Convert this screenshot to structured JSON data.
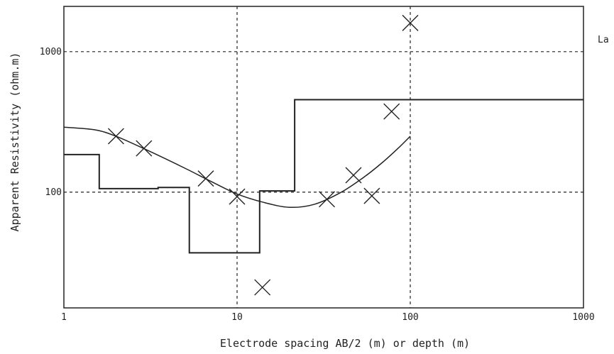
{
  "chart_data": {
    "type": "scatter",
    "xscale": "log",
    "yscale": "log",
    "xlim": [
      1,
      1000
    ],
    "ylim": [
      15,
      2100
    ],
    "grid": "dashed, major decades only",
    "xlabel": "Electrode spacing AB/2 (m) or depth (m)",
    "ylabel": "Apparent Resistivity (ohm.m)",
    "x_ticks": [
      {
        "value": 1,
        "label": "1"
      },
      {
        "value": 10,
        "label": "10"
      },
      {
        "value": 100,
        "label": "100"
      },
      {
        "value": 1000,
        "label": "1000"
      }
    ],
    "y_ticks": [
      {
        "value": 100,
        "label": "100"
      },
      {
        "value": 1000,
        "label": "1000"
      }
    ],
    "legend_fragment": "La",
    "series": [
      {
        "type": "scatter",
        "marker": "x",
        "points": [
          {
            "x": 2,
            "y": 250
          },
          {
            "x": 2.9,
            "y": 205
          },
          {
            "x": 6.6,
            "y": 125
          },
          {
            "x": 10,
            "y": 93
          },
          {
            "x": 14,
            "y": 21
          },
          {
            "x": 33,
            "y": 89
          },
          {
            "x": 47,
            "y": 132
          },
          {
            "x": 60,
            "y": 94
          },
          {
            "x": 78,
            "y": 375
          },
          {
            "x": 100,
            "y": 1600
          }
        ]
      },
      {
        "type": "line",
        "style": "smooth",
        "points": [
          {
            "x": 1,
            "y": 290
          },
          {
            "x": 1.5,
            "y": 278
          },
          {
            "x": 2,
            "y": 250
          },
          {
            "x": 3,
            "y": 200
          },
          {
            "x": 5,
            "y": 148
          },
          {
            "x": 7,
            "y": 120
          },
          {
            "x": 10,
            "y": 97
          },
          {
            "x": 14,
            "y": 85
          },
          {
            "x": 20,
            "y": 78
          },
          {
            "x": 28,
            "y": 82
          },
          {
            "x": 40,
            "y": 100
          },
          {
            "x": 55,
            "y": 130
          },
          {
            "x": 70,
            "y": 165
          },
          {
            "x": 85,
            "y": 205
          },
          {
            "x": 100,
            "y": 250
          }
        ]
      },
      {
        "type": "step",
        "points": [
          {
            "x": 1,
            "y": 185
          },
          {
            "x": 1.6,
            "y": 185
          },
          {
            "x": 1.6,
            "y": 106
          },
          {
            "x": 3.5,
            "y": 106
          },
          {
            "x": 3.5,
            "y": 108
          },
          {
            "x": 5.3,
            "y": 108
          },
          {
            "x": 5.3,
            "y": 37
          },
          {
            "x": 13.5,
            "y": 37
          },
          {
            "x": 13.5,
            "y": 102
          },
          {
            "x": 21.5,
            "y": 102
          },
          {
            "x": 21.5,
            "y": 455
          },
          {
            "x": 1000,
            "y": 455
          }
        ]
      }
    ]
  }
}
